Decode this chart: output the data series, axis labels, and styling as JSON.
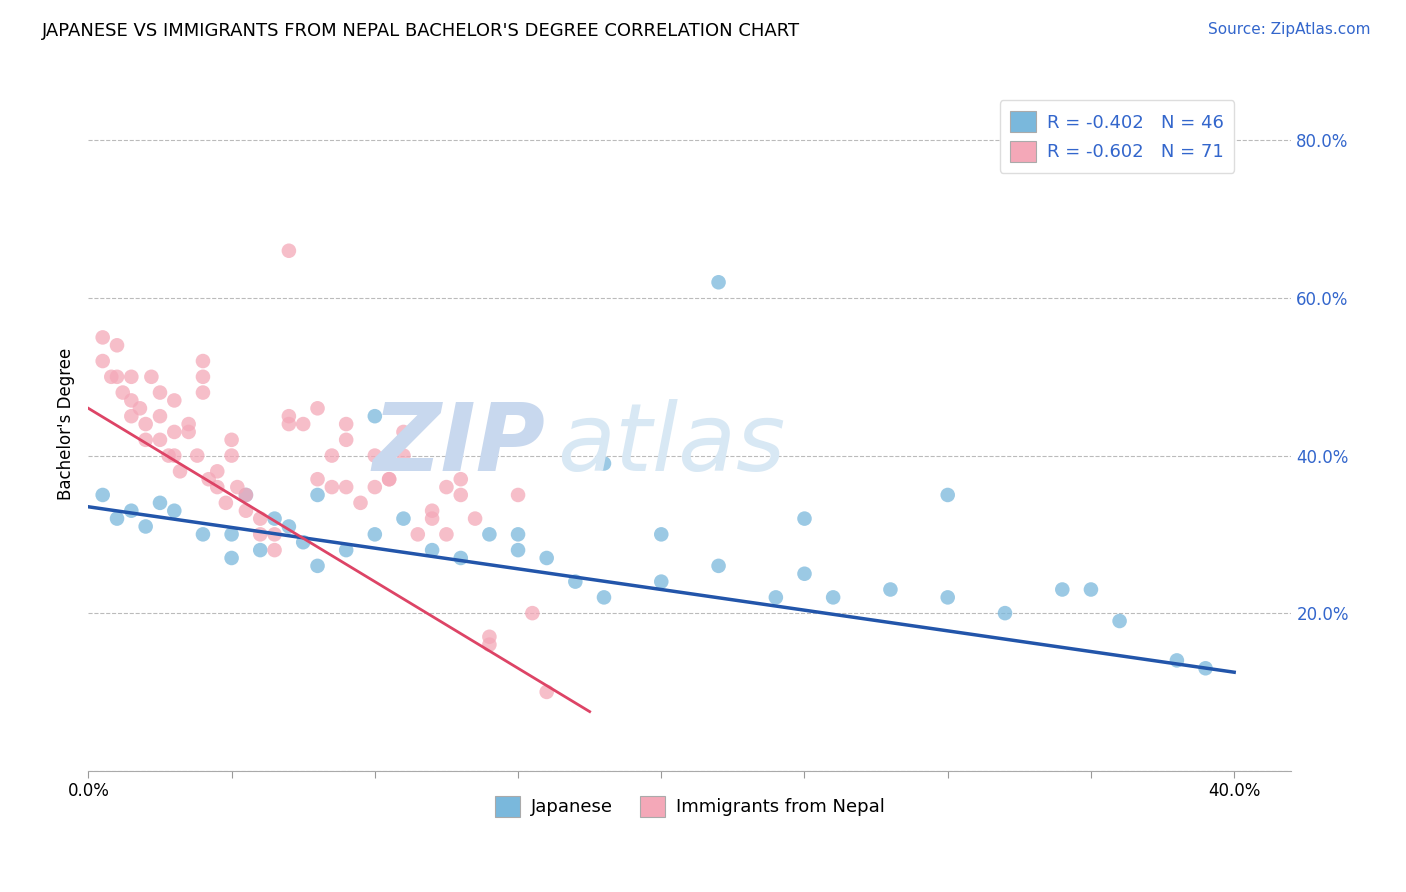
{
  "title": "JAPANESE VS IMMIGRANTS FROM NEPAL BACHELOR'S DEGREE CORRELATION CHART",
  "source_text": "Source: ZipAtlas.com",
  "ylabel": "Bachelor's Degree",
  "xlabel_japanese": "Japanese",
  "xlabel_nepal": "Immigrants from Nepal",
  "xlim": [
    0.0,
    0.42
  ],
  "ylim": [
    0.0,
    0.88
  ],
  "y_ticks": [
    0.0,
    0.2,
    0.4,
    0.6,
    0.8
  ],
  "x_ticks": [
    0.0,
    0.05,
    0.1,
    0.15,
    0.2,
    0.25,
    0.3,
    0.35,
    0.4
  ],
  "legend_blue_r": "R = -0.402",
  "legend_blue_n": "N = 46",
  "legend_pink_r": "R = -0.602",
  "legend_pink_n": "N = 71",
  "blue_scatter_color": "#7ab8dc",
  "pink_scatter_color": "#f4a8b8",
  "blue_line_color": "#2255aa",
  "pink_line_color": "#dd4466",
  "grid_color": "#bbbbbb",
  "text_color": "#3366cc",
  "watermark_zip_color": "#c8d8ee",
  "watermark_atlas_color": "#d8e8f4",
  "blue_x": [
    0.005,
    0.01,
    0.015,
    0.02,
    0.025,
    0.03,
    0.04,
    0.05,
    0.055,
    0.06,
    0.065,
    0.07,
    0.075,
    0.08,
    0.09,
    0.1,
    0.11,
    0.12,
    0.13,
    0.14,
    0.15,
    0.16,
    0.17,
    0.18,
    0.2,
    0.22,
    0.24,
    0.25,
    0.26,
    0.28,
    0.3,
    0.32,
    0.34,
    0.36,
    0.38,
    0.39,
    0.05,
    0.08,
    0.1,
    0.15,
    0.2,
    0.25,
    0.3,
    0.22,
    0.18,
    0.35
  ],
  "blue_y": [
    0.35,
    0.32,
    0.33,
    0.31,
    0.34,
    0.33,
    0.3,
    0.3,
    0.35,
    0.28,
    0.32,
    0.31,
    0.29,
    0.35,
    0.28,
    0.45,
    0.32,
    0.28,
    0.27,
    0.3,
    0.28,
    0.27,
    0.24,
    0.22,
    0.24,
    0.26,
    0.22,
    0.25,
    0.22,
    0.23,
    0.22,
    0.2,
    0.23,
    0.19,
    0.14,
    0.13,
    0.27,
    0.26,
    0.3,
    0.3,
    0.3,
    0.32,
    0.35,
    0.62,
    0.39,
    0.23
  ],
  "pink_x": [
    0.005,
    0.008,
    0.01,
    0.012,
    0.015,
    0.015,
    0.018,
    0.02,
    0.022,
    0.025,
    0.025,
    0.028,
    0.03,
    0.03,
    0.032,
    0.035,
    0.038,
    0.04,
    0.04,
    0.042,
    0.045,
    0.048,
    0.05,
    0.052,
    0.055,
    0.06,
    0.065,
    0.07,
    0.07,
    0.08,
    0.085,
    0.09,
    0.09,
    0.1,
    0.105,
    0.11,
    0.12,
    0.125,
    0.13,
    0.14,
    0.005,
    0.01,
    0.015,
    0.02,
    0.025,
    0.03,
    0.035,
    0.04,
    0.045,
    0.05,
    0.055,
    0.06,
    0.065,
    0.07,
    0.075,
    0.08,
    0.085,
    0.09,
    0.095,
    0.1,
    0.105,
    0.11,
    0.115,
    0.12,
    0.125,
    0.13,
    0.135,
    0.14,
    0.15,
    0.155,
    0.16
  ],
  "pink_y": [
    0.52,
    0.5,
    0.54,
    0.48,
    0.47,
    0.5,
    0.46,
    0.44,
    0.5,
    0.42,
    0.45,
    0.4,
    0.43,
    0.47,
    0.38,
    0.44,
    0.4,
    0.52,
    0.48,
    0.37,
    0.38,
    0.34,
    0.42,
    0.36,
    0.35,
    0.32,
    0.3,
    0.66,
    0.45,
    0.46,
    0.4,
    0.44,
    0.36,
    0.4,
    0.37,
    0.43,
    0.33,
    0.36,
    0.37,
    0.17,
    0.55,
    0.5,
    0.45,
    0.42,
    0.48,
    0.4,
    0.43,
    0.5,
    0.36,
    0.4,
    0.33,
    0.3,
    0.28,
    0.44,
    0.44,
    0.37,
    0.36,
    0.42,
    0.34,
    0.36,
    0.37,
    0.4,
    0.3,
    0.32,
    0.3,
    0.35,
    0.32,
    0.16,
    0.35,
    0.2,
    0.1
  ],
  "blue_line_x": [
    0.0,
    0.4
  ],
  "blue_line_y": [
    0.335,
    0.125
  ],
  "pink_line_x": [
    0.0,
    0.175
  ],
  "pink_line_y": [
    0.46,
    0.075
  ]
}
